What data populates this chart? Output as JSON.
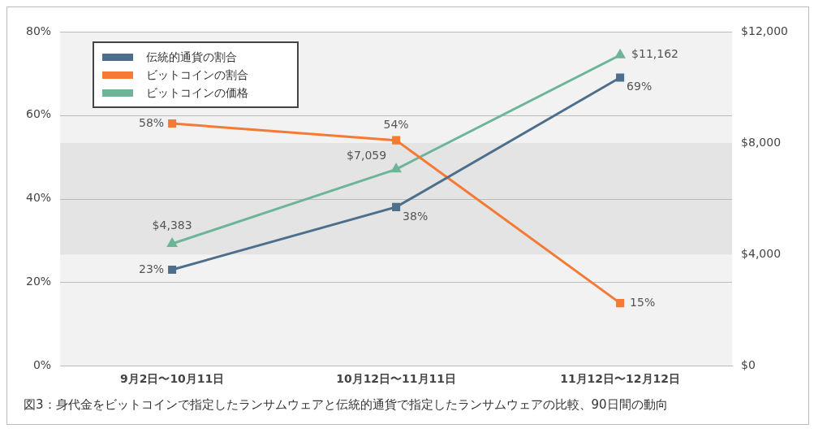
{
  "chart_data": {
    "type": "line",
    "categories": [
      "9月2日〜10月11日",
      "10月12日〜11月11日",
      "11月12日〜12月12日"
    ],
    "series": [
      {
        "name": "伝統的通貨の割合",
        "color": "#4d6f8c",
        "marker": "square",
        "values": [
          23,
          38,
          69
        ],
        "value_labels": [
          "23%",
          "38%",
          "69%"
        ]
      },
      {
        "name": "ビットコインの割合",
        "color": "#f47a35",
        "marker": "square",
        "values": [
          58,
          54,
          15
        ],
        "value_labels": [
          "58%",
          "54%",
          "15%"
        ]
      },
      {
        "name": "ビットコインの価格",
        "color": "#6db598",
        "marker": "triangle",
        "axis": "y2",
        "values": [
          4383,
          7059,
          11162
        ],
        "value_labels": [
          "$4,383",
          "$7,059",
          "$11,162"
        ]
      }
    ],
    "ylim": [
      0,
      80
    ],
    "yticks": [
      {
        "value": 0,
        "label": "0%"
      },
      {
        "value": 20,
        "label": "20%"
      },
      {
        "value": 40,
        "label": "40%"
      },
      {
        "value": 60,
        "label": "60%"
      },
      {
        "value": 80,
        "label": "80%"
      }
    ],
    "y2lim": [
      0,
      12000
    ],
    "y2ticks": [
      {
        "value": 0,
        "label": "$0"
      },
      {
        "value": 4000,
        "label": "$4,000"
      },
      {
        "value": 8000,
        "label": "$8,000"
      },
      {
        "value": 12000,
        "label": "$12,000"
      }
    ],
    "bands": [
      {
        "axis": "y2",
        "from": 4000,
        "to": 8000,
        "color": "#e4e4e4"
      }
    ],
    "grid": "y",
    "legend": "top left",
    "line_style": "solid",
    "annotations": [
      "図3：身代金をビットコインで指定したランサムウェアと伝統的通貨で指定したランサムウェアの比較、90日間の動向"
    ]
  }
}
